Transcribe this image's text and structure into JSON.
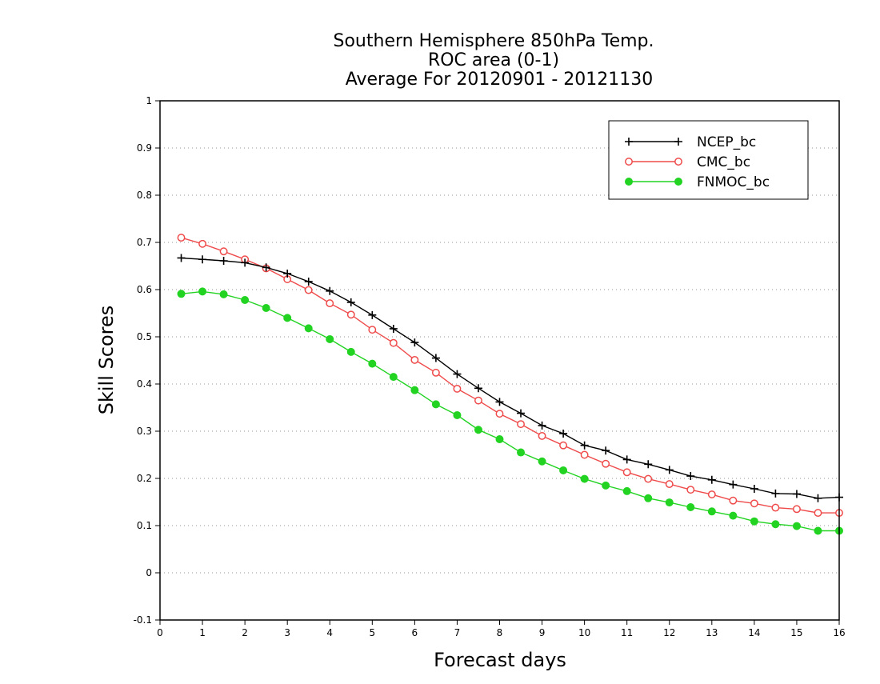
{
  "chart_data": {
    "type": "line",
    "title": [
      "Southern Hemisphere 850hPa Temp.",
      "ROC area (0-1)",
      "Average For 20120901 - 20121130"
    ],
    "xlabel": "Forecast days",
    "ylabel": "Skill Scores",
    "xlim": [
      0,
      16
    ],
    "ylim": [
      -0.1,
      1
    ],
    "x_ticks": [
      "0",
      "1",
      "2",
      "3",
      "4",
      "5",
      "6",
      "7",
      "8",
      "9",
      "10",
      "11",
      "12",
      "13",
      "14",
      "15",
      "16"
    ],
    "y_ticks": [
      "-0.1",
      "0",
      "0.1",
      "0.2",
      "0.3",
      "0.4",
      "0.5",
      "0.6",
      "0.7",
      "0.8",
      "0.9",
      "1"
    ],
    "grid": "horizontal dotted",
    "legend_position": "top-right",
    "x": [
      0.5,
      1,
      1.5,
      2,
      2.5,
      3,
      3.5,
      4,
      4.5,
      5,
      5.5,
      6,
      6.5,
      7,
      7.5,
      8,
      8.5,
      9,
      9.5,
      10,
      10.5,
      11,
      11.5,
      12,
      12.5,
      13,
      13.5,
      14,
      14.5,
      15,
      15.5,
      16
    ],
    "series": [
      {
        "name": "NCEP_bc",
        "color": "#000000",
        "marker": "plus",
        "values": [
          0.667,
          0.664,
          0.661,
          0.657,
          0.647,
          0.634,
          0.617,
          0.597,
          0.573,
          0.546,
          0.517,
          0.488,
          0.455,
          0.421,
          0.391,
          0.362,
          0.338,
          0.312,
          0.295,
          0.27,
          0.259,
          0.24,
          0.23,
          0.218,
          0.205,
          0.197,
          0.187,
          0.178,
          0.168,
          0.167,
          0.158,
          0.16
        ]
      },
      {
        "name": "CMC_bc",
        "color": "#ef4b4b",
        "marker": "open-circle",
        "values": [
          0.71,
          0.697,
          0.681,
          0.664,
          0.645,
          0.622,
          0.599,
          0.571,
          0.547,
          0.515,
          0.487,
          0.451,
          0.424,
          0.39,
          0.365,
          0.337,
          0.315,
          0.29,
          0.27,
          0.25,
          0.231,
          0.213,
          0.199,
          0.188,
          0.176,
          0.166,
          0.153,
          0.147,
          0.138,
          0.135,
          0.127,
          0.127
        ]
      },
      {
        "name": "FNMOC_bc",
        "color": "#22d322",
        "marker": "filled-circle",
        "values": [
          0.591,
          0.596,
          0.59,
          0.578,
          0.561,
          0.54,
          0.518,
          0.495,
          0.468,
          0.443,
          0.415,
          0.387,
          0.357,
          0.334,
          0.303,
          0.283,
          0.255,
          0.236,
          0.217,
          0.199,
          0.185,
          0.173,
          0.158,
          0.149,
          0.139,
          0.13,
          0.121,
          0.109,
          0.103,
          0.099,
          0.089,
          0.089
        ]
      }
    ]
  }
}
